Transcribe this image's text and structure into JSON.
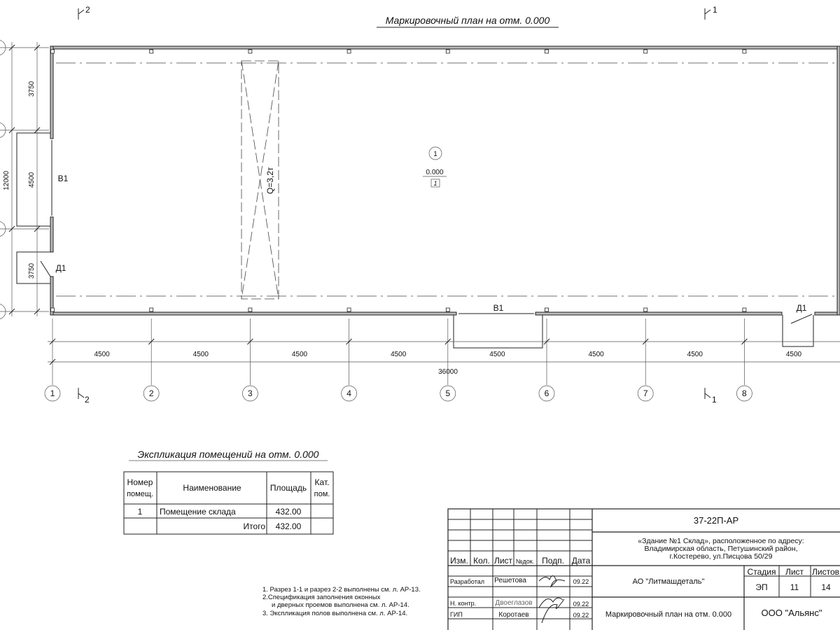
{
  "drawing": {
    "title": "Маркировочный план на отм. 0.000",
    "section_marks": {
      "top_left": "2",
      "top_right": "1",
      "bottom_left": "2",
      "bottom_right": "1"
    },
    "axes_x": [
      "1",
      "2",
      "3",
      "4",
      "5",
      "6",
      "7",
      "8"
    ],
    "dims_x": [
      "4500",
      "4500",
      "4500",
      "4500",
      "4500",
      "4500",
      "4500",
      "4500"
    ],
    "dim_total_x": "36000",
    "dims_y": [
      "3750",
      "4500",
      "3750"
    ],
    "dim_total_y": "12000",
    "crane_label": "Q=3,2т",
    "room": {
      "number": "1",
      "level": "0.000",
      "floor_type": "1"
    },
    "openings": {
      "window_left": "В1",
      "door_left": "Д1",
      "window_bottom": "В1",
      "door_bottom": "Д1"
    }
  },
  "explication": {
    "title": "Экспликация помещений на отм. 0.000",
    "headers": [
      "Номер помещ.",
      "Наименование",
      "Площадь",
      "Кат. пом."
    ],
    "rows": [
      {
        "num": "1",
        "name": "Помещение склада",
        "area": "432.00",
        "cat": ""
      }
    ],
    "total_label": "Итого",
    "total_area": "432.00"
  },
  "notes": [
    "1. Разрез 1-1 и разрез 2-2 выполнены см. л. АР-13.",
    "2.Спецификация заполнения оконных",
    "и дверных проемов выполнена см. л. АР-14.",
    "3. Экспликация полов выполнена см. л. АР-14."
  ],
  "title_block": {
    "code": "37-22П-АР",
    "object": [
      "«Здание №1 Склад», расположенное по адресу:",
      "Владимирская область, Петушинский район,",
      "г.Костерево, ул.Писцова 50/29"
    ],
    "headers": [
      "Изм.",
      "Кол.",
      "Лист",
      "№док.",
      "Подп.",
      "Дата"
    ],
    "roles": [
      {
        "role": "Разработал",
        "name": "Решетова",
        "date": "09.22"
      },
      {
        "role": "Н. контр.",
        "name": "Двоеглазов",
        "date": "09.22"
      },
      {
        "role": "ГИП",
        "name": "Коротаев",
        "date": "09.22"
      }
    ],
    "client": "АО \"Литмашдеталь\"",
    "sheet_title": "Маркировочный план на отм. 0.000",
    "stage_label": "Стадия",
    "sheet_label": "Лист",
    "sheets_label": "Листов",
    "stage": "ЭП",
    "sheet": "11",
    "sheets": "14",
    "company": "ООО \"Альянс\""
  }
}
